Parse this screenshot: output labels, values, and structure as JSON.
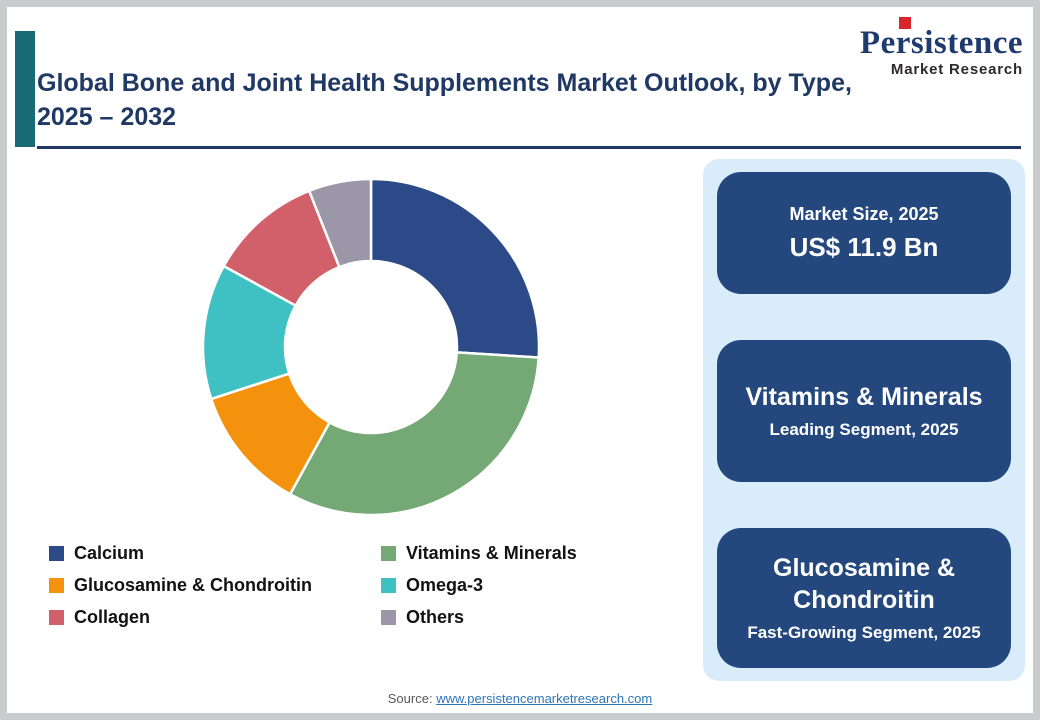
{
  "logo": {
    "name": "Persistence",
    "tagline": "Market Research"
  },
  "header": {
    "title_line1": "Global Bone and Joint Health Supplements Market Outlook, by Type,",
    "title_line2": "2025 – 2032"
  },
  "chart_data": {
    "type": "pie",
    "donut": true,
    "title": "Global Bone and Joint Health Supplements Market Outlook, by Type, 2025 – 2032",
    "start_angle": "top",
    "direction": "clockwise",
    "inner_radius_ratio": 0.51,
    "legend_position": "bottom",
    "segments": [
      {
        "label": "Calcium",
        "value": 26,
        "color": "#2B4A87"
      },
      {
        "label": "Vitamins & Minerals",
        "value": 32,
        "color": "#74A874"
      },
      {
        "label": "Glucosamine & Chondroitin",
        "value": 12,
        "color": "#F4920D"
      },
      {
        "label": "Omega-3",
        "value": 13,
        "color": "#3FC0C3"
      },
      {
        "label": "Collagen",
        "value": 11,
        "color": "#D2606A"
      },
      {
        "label": "Others",
        "value": 6,
        "color": "#9B97A9"
      }
    ]
  },
  "sidebar": {
    "cards": [
      {
        "title": "Market Size, 2025",
        "value": "US$ 11.9 Bn"
      },
      {
        "title": "Vitamins & Minerals",
        "subtitle": "Leading Segment, 2025"
      },
      {
        "title": "Glucosamine & Chondroitin",
        "subtitle": "Fast-Growing Segment, 2025"
      }
    ]
  },
  "footer": {
    "source_label": "Source:",
    "source_link": "www.persistencemarketresearch.com"
  },
  "colors": {
    "title_navy": "#1F3864",
    "card_navy": "#24487E",
    "panel_blue": "#D8EDF9",
    "accent_teal": "#186A75",
    "logo_red": "#D9262C",
    "link_blue": "#2E75B6"
  }
}
